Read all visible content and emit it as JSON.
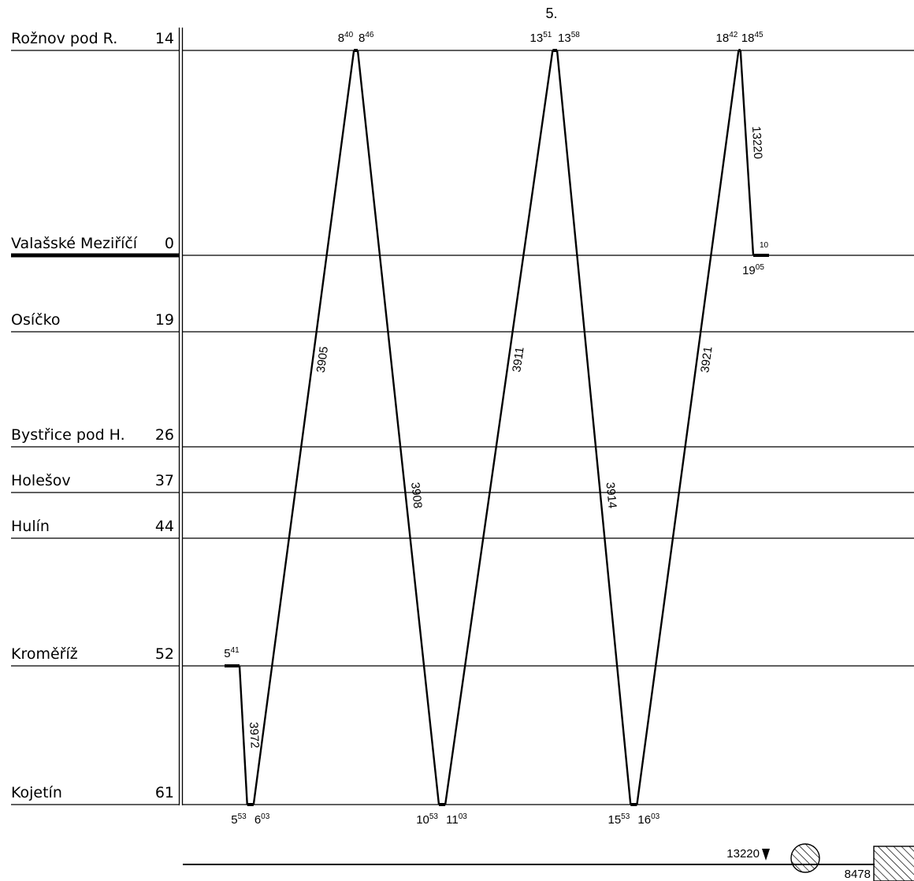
{
  "diagram": {
    "title": "5.",
    "stations": [
      {
        "name": "Rožnov pod R.",
        "km": "14",
        "main": false
      },
      {
        "name": "Valašské Meziříčí",
        "km": "0",
        "main": true
      },
      {
        "name": "Osíčko",
        "km": "19",
        "main": false
      },
      {
        "name": "Bystřice pod H.",
        "km": "26",
        "main": false
      },
      {
        "name": "Holešov",
        "km": "37",
        "main": false
      },
      {
        "name": "Hulín",
        "km": "44",
        "main": false
      },
      {
        "name": "Kroměříž",
        "km": "52",
        "main": false
      },
      {
        "name": "Kojetín",
        "km": "61",
        "main": false
      }
    ],
    "trains": [
      {
        "number": "3972",
        "from": "Kroměříž",
        "to": "Kojetín",
        "dep": "5:41",
        "arr": "5:53"
      },
      {
        "number": "3905",
        "from": "Kojetín",
        "to": "Rožnov pod R.",
        "dep": "6:03",
        "arr": "8:40"
      },
      {
        "number": "3908",
        "from": "Rožnov pod R.",
        "to": "Kojetín",
        "dep": "8:46",
        "arr": "10:53"
      },
      {
        "number": "3911",
        "from": "Kojetín",
        "to": "Rožnov pod R.",
        "dep": "11:03",
        "arr": "13:51"
      },
      {
        "number": "3914",
        "from": "Rožnov pod R.",
        "to": "Kojetín",
        "dep": "13:58",
        "arr": "15:53"
      },
      {
        "number": "3921",
        "from": "Kojetín",
        "to": "Rožnov pod R.",
        "dep": "16:03",
        "arr": "18:42"
      },
      {
        "number": "13220",
        "from": "Rožnov pod R.",
        "to": "Valašské Meziříčí",
        "dep": "18:45",
        "arr": "19:05"
      }
    ],
    "time_labels": [
      {
        "h": "5",
        "m": "41"
      },
      {
        "h": "5",
        "m": "53"
      },
      {
        "h": "6",
        "m": "03"
      },
      {
        "h": "8",
        "m": "40"
      },
      {
        "h": "8",
        "m": "46"
      },
      {
        "h": "10",
        "m": "53"
      },
      {
        "h": "11",
        "m": "03"
      },
      {
        "h": "13",
        "m": "51"
      },
      {
        "h": "13",
        "m": "58"
      },
      {
        "h": "15",
        "m": "53"
      },
      {
        "h": "16",
        "m": "03"
      },
      {
        "h": "18",
        "m": "42"
      },
      {
        "h": "18",
        "m": "45"
      },
      {
        "h": "19",
        "m": "05"
      }
    ],
    "end_minute_label": "10",
    "bottom_bar": {
      "marker_train": "13220",
      "end_code": "8478"
    }
  }
}
